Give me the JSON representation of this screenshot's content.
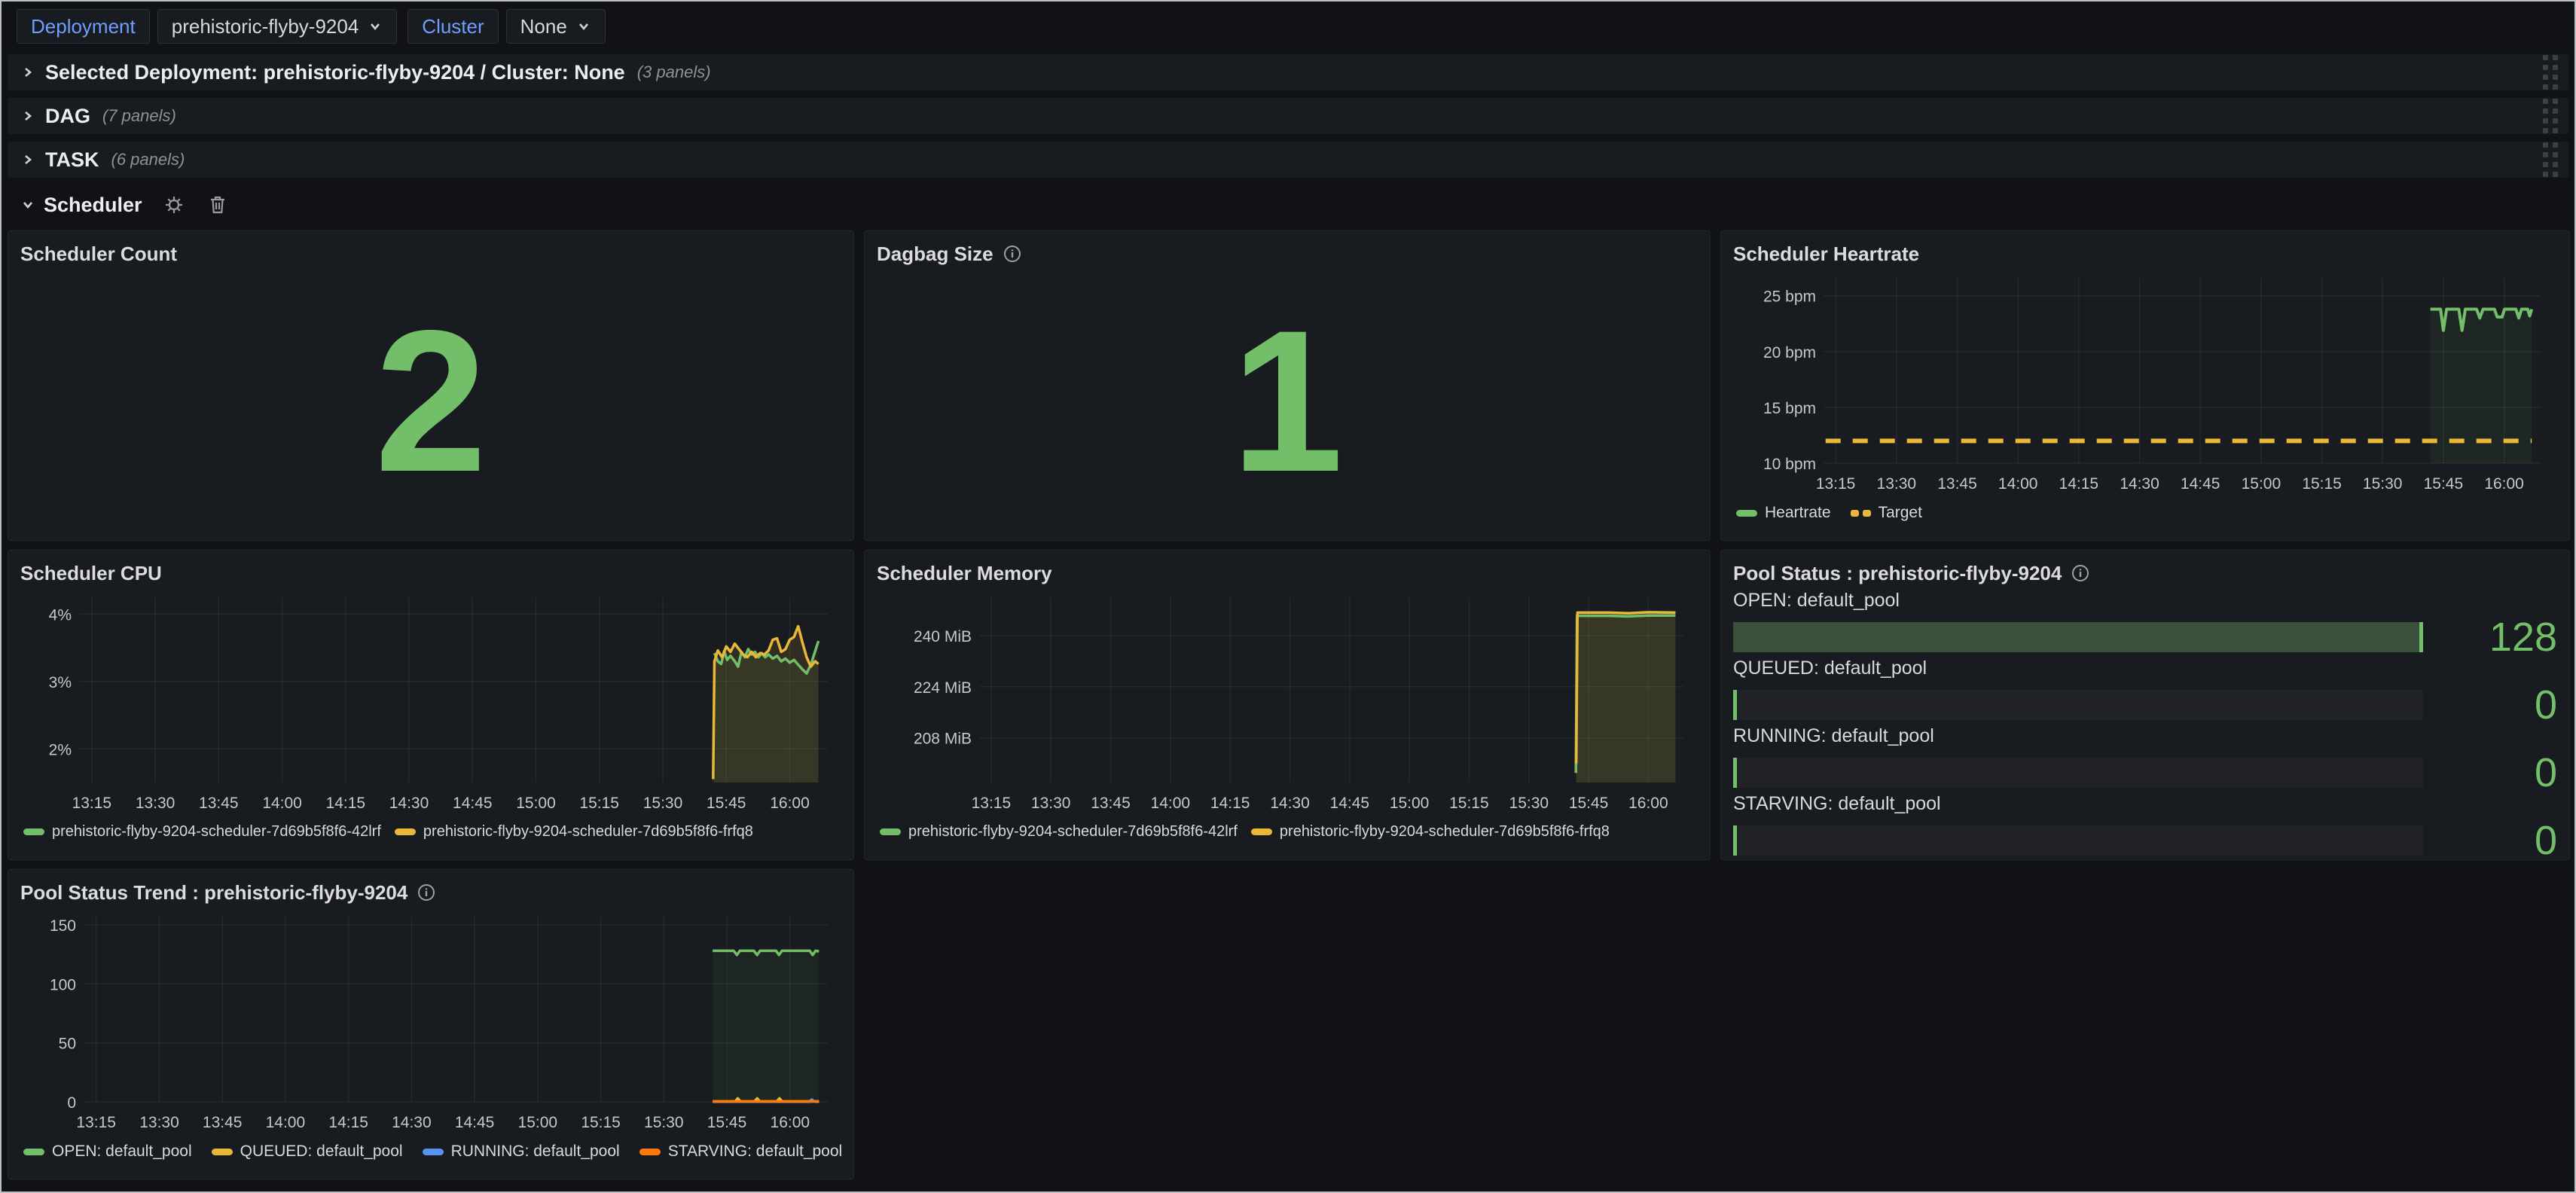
{
  "toolbar": {
    "deployment_label": "Deployment",
    "deployment_value": "prehistoric-flyby-9204",
    "cluster_label": "Cluster",
    "cluster_value": "None"
  },
  "rows": [
    {
      "title": "Selected Deployment: prehistoric-flyby-9204 / Cluster: None",
      "count": "(3 panels)"
    },
    {
      "title": "DAG",
      "count": "(7 panels)"
    },
    {
      "title": "TASK",
      "count": "(6 panels)"
    },
    {
      "title": "Scheduler"
    }
  ],
  "panels": {
    "scheduler_count": {
      "title": "Scheduler Count",
      "value": "2"
    },
    "dagbag_size": {
      "title": "Dagbag Size",
      "value": "1"
    },
    "scheduler_heartrate": {
      "title": "Scheduler Heartrate"
    },
    "scheduler_cpu": {
      "title": "Scheduler CPU"
    },
    "scheduler_memory": {
      "title": "Scheduler Memory"
    },
    "pool_status": {
      "title": "Pool Status : prehistoric-flyby-9204",
      "gauges": [
        {
          "label": "OPEN: default_pool",
          "value": "128",
          "pct": 100
        },
        {
          "label": "QUEUED: default_pool",
          "value": "0",
          "pct": 0
        },
        {
          "label": "RUNNING: default_pool",
          "value": "0",
          "pct": 0
        },
        {
          "label": "STARVING: default_pool",
          "value": "0",
          "pct": 0
        }
      ]
    },
    "pool_status_trend": {
      "title": "Pool Status Trend : prehistoric-flyby-9204"
    }
  },
  "colors": {
    "green": "#73bf69",
    "yellow": "#eab839",
    "blue": "#5794f2",
    "orange": "#ff780a",
    "panel_bg": "#181b1f",
    "page_bg": "#111217"
  },
  "time_axis": {
    "domain": [
      792,
      969
    ],
    "ticks": [
      {
        "v": 795,
        "label": "13:15"
      },
      {
        "v": 810,
        "label": "13:30"
      },
      {
        "v": 825,
        "label": "13:45"
      },
      {
        "v": 840,
        "label": "14:00"
      },
      {
        "v": 855,
        "label": "14:15"
      },
      {
        "v": 870,
        "label": "14:30"
      },
      {
        "v": 885,
        "label": "14:45"
      },
      {
        "v": 900,
        "label": "15:00"
      },
      {
        "v": 915,
        "label": "15:15"
      },
      {
        "v": 930,
        "label": "15:30"
      },
      {
        "v": 945,
        "label": "15:45"
      },
      {
        "v": 960,
        "label": "16:00"
      }
    ]
  },
  "chart_data": [
    {
      "id": "heartrate",
      "type": "line",
      "title": "Scheduler Heartrate",
      "unit": "bpm",
      "pad_left": 120,
      "y_domain": [
        10,
        26.6
      ],
      "y_ticks": [
        {
          "v": 10,
          "label": "10 bpm"
        },
        {
          "v": 15,
          "label": "15 bpm"
        },
        {
          "v": 20,
          "label": "20 bpm"
        },
        {
          "v": 25,
          "label": "25 bpm"
        }
      ],
      "series": [
        {
          "name": "Heartrate",
          "color": "#73bf69",
          "width": 4,
          "fill_opacity": 0.08,
          "points": [
            [
              941.8,
              23.8
            ],
            [
              944.3,
              23.8
            ],
            [
              945.0,
              21.9
            ],
            [
              945.8,
              23.8
            ],
            [
              948.8,
              23.8
            ],
            [
              949.6,
              21.9
            ],
            [
              950.4,
              23.8
            ],
            [
              953.2,
              23.8
            ],
            [
              954.0,
              23.0
            ],
            [
              954.8,
              23.8
            ],
            [
              957.6,
              23.8
            ],
            [
              958.3,
              23.1
            ],
            [
              959.5,
              23.1
            ],
            [
              960.1,
              23.8
            ],
            [
              962.9,
              23.8
            ],
            [
              963.6,
              23.0
            ],
            [
              964.3,
              23.8
            ],
            [
              965.8,
              23.8
            ],
            [
              966.3,
              23.2
            ],
            [
              966.8,
              23.8
            ]
          ]
        },
        {
          "name": "Target",
          "color": "#eab839",
          "width": 6,
          "dash": [
            20,
            16
          ],
          "fill_opacity": 0,
          "points": [
            [
              792.5,
              12
            ],
            [
              966.8,
              12
            ]
          ]
        }
      ]
    },
    {
      "id": "cpu",
      "type": "line",
      "title": "Scheduler CPU",
      "unit": "percent",
      "pad_left": 78,
      "y_domain": [
        1.5,
        4.25
      ],
      "y_ticks": [
        {
          "v": 2,
          "label": "2%"
        },
        {
          "v": 3,
          "label": "3%"
        },
        {
          "v": 4,
          "label": "4%"
        }
      ],
      "series": [
        {
          "name": "prehistoric-flyby-9204-scheduler-7d69b5f8f6-42lrf",
          "color": "#73bf69",
          "width": 3.5,
          "fill_opacity": 0.07,
          "points": [
            [
              942.2,
              3.42
            ],
            [
              943,
              3.3
            ],
            [
              943.8,
              3.26
            ],
            [
              944.5,
              3.45
            ],
            [
              945.2,
              3.32
            ],
            [
              946,
              3.38
            ],
            [
              947,
              3.3
            ],
            [
              947.8,
              3.22
            ],
            [
              948.6,
              3.44
            ],
            [
              949.4,
              3.36
            ],
            [
              950.2,
              3.48
            ],
            [
              951,
              3.4
            ],
            [
              951.8,
              3.44
            ],
            [
              952.6,
              3.36
            ],
            [
              953.4,
              3.42
            ],
            [
              954.2,
              3.36
            ],
            [
              955,
              3.4
            ],
            [
              956,
              3.34
            ],
            [
              957,
              3.38
            ],
            [
              958,
              3.3
            ],
            [
              959,
              3.34
            ],
            [
              960,
              3.28
            ],
            [
              961,
              3.32
            ],
            [
              962,
              3.25
            ],
            [
              963,
              3.18
            ],
            [
              964,
              3.12
            ],
            [
              965,
              3.25
            ],
            [
              966,
              3.45
            ],
            [
              966.8,
              3.6
            ]
          ]
        },
        {
          "name": "prehistoric-flyby-9204-scheduler-7d69b5f8f6-frfq8",
          "color": "#eab839",
          "width": 3.5,
          "fill_opacity": 0.12,
          "points": [
            [
              941.9,
              1.55
            ],
            [
              942.2,
              3.3
            ],
            [
              943,
              3.46
            ],
            [
              944,
              3.36
            ],
            [
              945,
              3.52
            ],
            [
              946,
              3.44
            ],
            [
              947,
              3.56
            ],
            [
              948,
              3.48
            ],
            [
              949,
              3.4
            ],
            [
              950,
              3.36
            ],
            [
              951,
              3.44
            ],
            [
              952,
              3.36
            ],
            [
              953,
              3.42
            ],
            [
              954,
              3.4
            ],
            [
              955,
              3.46
            ],
            [
              956,
              3.62
            ],
            [
              957,
              3.64
            ],
            [
              958,
              3.44
            ],
            [
              959,
              3.48
            ],
            [
              960,
              3.62
            ],
            [
              961,
              3.66
            ],
            [
              962,
              3.82
            ],
            [
              963,
              3.58
            ],
            [
              964,
              3.36
            ],
            [
              965,
              3.22
            ],
            [
              966,
              3.3
            ],
            [
              966.8,
              3.26
            ]
          ]
        }
      ]
    },
    {
      "id": "memory",
      "type": "line",
      "title": "Scheduler Memory",
      "unit": "MiB",
      "pad_left": 136,
      "y_domain": [
        194,
        252
      ],
      "y_ticks": [
        {
          "v": 208,
          "label": "208 MiB"
        },
        {
          "v": 224,
          "label": "224 MiB"
        },
        {
          "v": 240,
          "label": "240 MiB"
        }
      ],
      "series": [
        {
          "name": "prehistoric-flyby-9204-scheduler-7d69b5f8f6-42lrf",
          "color": "#73bf69",
          "width": 3.5,
          "fill_opacity": 0.07,
          "points": [
            [
              941.8,
              197
            ],
            [
              942.1,
              246.2
            ],
            [
              950,
              246.2
            ],
            [
              955,
              246.0
            ],
            [
              960,
              246.3
            ],
            [
              966.8,
              246.3
            ]
          ]
        },
        {
          "name": "prehistoric-flyby-9204-scheduler-7d69b5f8f6-frfq8",
          "color": "#eab839",
          "width": 3.5,
          "fill_opacity": 0.12,
          "points": [
            [
              941.9,
              200
            ],
            [
              942.2,
              247.2
            ],
            [
              950,
              247.2
            ],
            [
              955,
              247.0
            ],
            [
              960,
              247.3
            ],
            [
              966.8,
              247.2
            ]
          ]
        }
      ]
    },
    {
      "id": "pool_trend",
      "type": "line",
      "title": "Pool Status Trend : prehistoric-flyby-9204",
      "unit": "count",
      "pad_left": 84,
      "y_domain": [
        0,
        157
      ],
      "y_ticks": [
        {
          "v": 0,
          "label": "0"
        },
        {
          "v": 50,
          "label": "50"
        },
        {
          "v": 100,
          "label": "100"
        },
        {
          "v": 150,
          "label": "150"
        }
      ],
      "series": [
        {
          "name": "OPEN: default_pool",
          "color": "#73bf69",
          "width": 3.5,
          "fill_opacity": 0.07,
          "points": [
            [
              941.6,
              128
            ],
            [
              946.6,
              128
            ],
            [
              947.4,
              124.5
            ],
            [
              948.1,
              128
            ],
            [
              951.4,
              128
            ],
            [
              952.2,
              124.5
            ],
            [
              952.9,
              128
            ],
            [
              956.7,
              128
            ],
            [
              957.4,
              124.5
            ],
            [
              958.1,
              128
            ],
            [
              964.7,
              128
            ],
            [
              965.4,
              124.5
            ],
            [
              966.1,
              128
            ],
            [
              966.9,
              127.5
            ]
          ]
        },
        {
          "name": "QUEUED: default_pool",
          "color": "#eab839",
          "width": 3.5,
          "fill_opacity": 0,
          "points": [
            [
              941.6,
              0.4
            ],
            [
              947.0,
              0.4
            ],
            [
              947.6,
              3
            ],
            [
              948.2,
              0.4
            ],
            [
              951.6,
              0.4
            ],
            [
              952.2,
              3
            ],
            [
              952.8,
              0.4
            ],
            [
              956.9,
              0.4
            ],
            [
              957.5,
              3
            ],
            [
              958.1,
              0.4
            ],
            [
              966.9,
              0.4
            ]
          ]
        },
        {
          "name": "RUNNING: default_pool",
          "color": "#5794f2",
          "width": 3.5,
          "fill_opacity": 0,
          "points": [
            [
              941.6,
              0.2
            ],
            [
              964.6,
              0.2
            ],
            [
              965.2,
              2
            ],
            [
              965.8,
              0.2
            ],
            [
              966.9,
              0.2
            ]
          ]
        },
        {
          "name": "STARVING: default_pool",
          "color": "#ff780a",
          "width": 3.5,
          "fill_opacity": 0,
          "points": [
            [
              941.6,
              0.3
            ],
            [
              966.9,
              0.3
            ]
          ]
        }
      ]
    }
  ]
}
